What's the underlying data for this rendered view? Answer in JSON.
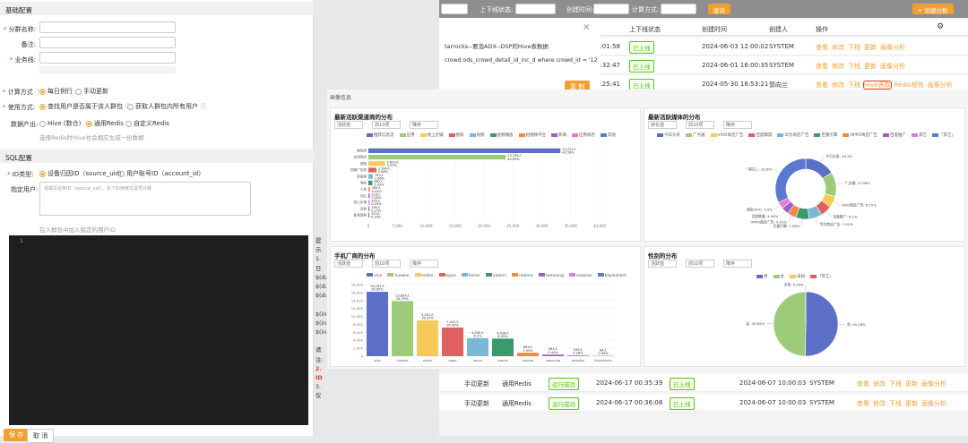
{
  "bg": {
    "filter_status_label": "上下线状态:",
    "filter_created_label": "创建时间:",
    "filter_calc_label": "计算方式:",
    "query_btn": "查询",
    "create_btn": "+ 创建分群",
    "headers": [
      "上下线状态",
      "创建时间",
      "创建人",
      "操作"
    ],
    "rows": [
      {
        "t0": "5:01:58",
        "status": "已上线",
        "created": "2024-06-03 12:00:02",
        "creator": "SYSTEM"
      },
      {
        "t0": "5:32:47",
        "status": "已上线",
        "created": "2024-06-01 16:00:35",
        "creator": "SYSTEM"
      },
      {
        "t0": "5:25:41",
        "status": "已上线",
        "created": "2024-05-30 16:53:21",
        "creator": "郭向兰"
      }
    ],
    "ops": [
      "查看",
      "修改",
      "下线",
      "更新",
      "画像分析"
    ],
    "op_hive": "Hive表数",
    "op_redis": "Redis校验",
    "bottom_rows": [
      {
        "mode": "手动更新",
        "method": "通用Redis",
        "run": "运行成功",
        "time": "2024-06-17 00:35:39",
        "status": "已上线",
        "created": "2024-06-07 10:00:03",
        "creator": "SYSTEM"
      },
      {
        "mode": "手动更新",
        "method": "通用Redis",
        "run": "运行成功",
        "time": "2024-06-17 00:36:08",
        "status": "已上线",
        "created": "2024-06-07 10:00:03",
        "creator": "SYSTEM"
      }
    ]
  },
  "modal": {
    "title": "tarrocks--要泡ADX--DSP的Hive表数据",
    "sql": "crowd.ods_crowd_detail_id_inc_d where crowd_id = '1256'",
    "copy_btn": "复 制",
    "close": "×"
  },
  "left": {
    "section_basic": "基础配置",
    "name_label": "分群名称:",
    "remark_label": "备注:",
    "line_label": "业务线:",
    "calc_label": "计算方式",
    "calc_opts": [
      "每日例行",
      "手动更新"
    ],
    "use_label": "使用方式:",
    "use_opts": [
      "查找用户是否属于该人群包",
      "获取人群包内所有用户"
    ],
    "output_label": "数据产出:",
    "output_opts": [
      "Hive (数仓)",
      "通用Redis",
      "自定义Redis"
    ],
    "output_hint": "选择Redis时Hive也会相应生成一份数据",
    "section_sql": "SQL配置",
    "id_label": "ID类型:",
    "id_opts": [
      "设备归因ID（source_uid）",
      "用户账号ID（account_id）"
    ],
    "spec_label": "指定用户:",
    "spec_placeholder": "请填写业务ID（source_uid），多个ID用英文逗号分隔",
    "spec_hint": "在人群包中加入指定的用户ID",
    "line_no": "1",
    "notes": [
      "提示",
      "1. 日",
      "$(dat",
      "$(dat",
      "$(dat",
      "",
      "$(inp",
      "$(inp",
      "$(inp",
      "",
      "请注:",
      "2. ID",
      "3. 仅"
    ],
    "save_btn": "保 存",
    "cancel_btn": "取 消"
  },
  "panel": {
    "title": "画像信息",
    "c1": {
      "title": "最新活跃渠道商的分布",
      "selects": [
        "活跃值",
        "前10项",
        "降序"
      ]
    },
    "c2": {
      "title": "最新活跃媒体的分布",
      "selects": [
        "转化值",
        "前10项",
        "降序"
      ]
    },
    "c3": {
      "title": "手机厂商的分布",
      "selects": [
        "活跃值",
        "前10项",
        "降序"
      ]
    },
    "c4": {
      "title": "性别的分布",
      "selects": [
        "活跃值",
        "前10项",
        "降序"
      ]
    }
  },
  "chart_data": [
    {
      "type": "bar",
      "orientation": "horizontal",
      "title": "最新活跃渠道商的分布",
      "categories": [
        "推荐类",
        "应用商店",
        "搜索",
        "视频广告类",
        "新闻类",
        "导航",
        "工具",
        "社区",
        "线上店铺",
        "其他",
        "影视音频"
      ],
      "values": [
        33221,
        23756,
        2893,
        1384,
        763,
        685,
        265,
        218,
        205,
        190,
        153
      ],
      "labels": [
        "33,221人\n40.59%",
        "23,756人\n40.09%",
        "2,893人\n3.53%",
        "1,384人\n2.68%",
        "763人\n1.66%",
        "685人\n1.03%",
        "265人\n0.33%",
        "218人\n0.26%",
        "205人\n0.25%",
        "190人\n0.23%",
        "153人\n0.19%"
      ],
      "legend": [
        "推荐信息流",
        "应用",
        "线上店铺",
        "搜索",
        "视频",
        "视频播放",
        "短视频平台",
        "新闻",
        "应用商店",
        "其他"
      ],
      "xticks": [
        "0",
        "5,000",
        "10,000",
        "15,000",
        "20,000",
        "25,000",
        "30,000",
        "35,000",
        "40,000"
      ],
      "xlim": [
        0,
        40000
      ]
    },
    {
      "type": "pie",
      "variant": "donut",
      "title": "最新活跃媒体的分布",
      "legend": [
        "今日头条",
        "广点通",
        "VIVO商店广告",
        "百度联盟",
        "华为商店广告",
        "巨量引擎",
        "OPPO商店广告",
        "百度推广",
        "其它",
        "「其它」"
      ],
      "slices": [
        {
          "label": "今日头条",
          "value": 16.2
        },
        {
          "label": "广点通",
          "value": 12.96
        },
        {
          "label": "VIVO商店广告",
          "value": 6.15
        },
        {
          "label": "百度推广",
          "value": 6.1
        },
        {
          "label": "华为商店广告",
          "value": 7.02
        },
        {
          "label": "巨量引擎",
          "value": 7.06
        },
        {
          "label": "OPPO商店广告",
          "value": 4.72
        },
        {
          "label": "百度联盟",
          "value": 4.04
        },
        {
          "label": "商店VIVO",
          "value": 3.5
        },
        {
          "label": "「其它」",
          "value": 32.6
        }
      ],
      "labels": [
        "今日头条: 16.2%",
        "广点通: 12.96%",
        "VIVO商店广告: 6.15%",
        "百度推广: 6.1%",
        "华为商店广告: 7.02%",
        "巨量引擎: 7.06%",
        "OPPO商店广告: 4.72%",
        "百度联盟: 4.04%",
        "商店VIVO: 3.5%",
        "「其它」: 32.6%"
      ]
    },
    {
      "type": "bar",
      "title": "手机厂商的分布",
      "categories": [
        "vivo",
        "huawei",
        "redmi",
        "oppo",
        "honor",
        "xiaomi",
        "realme",
        "samsung",
        "oneplus",
        "blackshark"
      ],
      "values": [
        16187,
        13854,
        9001,
        7203,
        4540,
        4426,
        863,
        402,
        245,
        84
      ],
      "labels": [
        "16,187人\n26.95%",
        "13,854人\n24.79%",
        "9,001人\n16.37%",
        "7,203人\n14.20%",
        "4,540人\n8.2%",
        "4,426人\n8.05%",
        "863人\n1.05%",
        "402人\n0.44%",
        "245人\n0.28%",
        "84人\n0.05%"
      ],
      "legend": [
        "vivo",
        "huawei",
        "redmi",
        "oppo",
        "honor",
        "xiaomi",
        "realme",
        "samsung",
        "oneplus",
        "blackshark"
      ],
      "yticks": [
        "0",
        "2,000",
        "4,000",
        "6,000",
        "8,000",
        "10,000",
        "12,000",
        "14,000",
        "16,000",
        "18,000"
      ],
      "ylim": [
        0,
        18000
      ]
    },
    {
      "type": "pie",
      "title": "性别的分布",
      "legend": [
        "男",
        "女",
        "未知",
        "「其它」"
      ],
      "slices": [
        {
          "label": "男",
          "value": 50.28
        },
        {
          "label": "女",
          "value": 49.62
        },
        {
          "label": "未知",
          "value": 0.09
        }
      ],
      "labels": [
        "未知: 0.09%",
        "女: 49.62%",
        "男: 50.28%"
      ]
    }
  ]
}
